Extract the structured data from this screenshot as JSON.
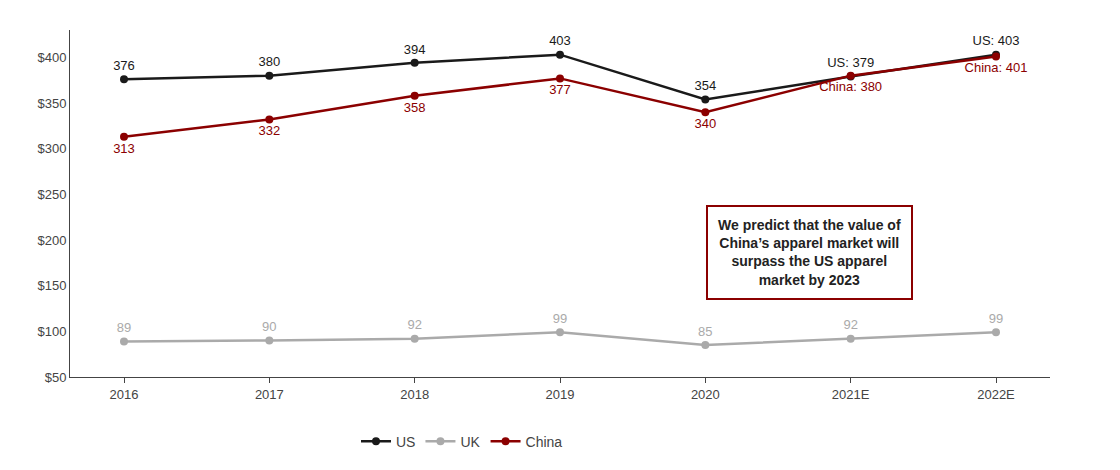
{
  "chart_data": {
    "type": "line",
    "categories": [
      "2016",
      "2017",
      "2018",
      "2019",
      "2020",
      "2021E",
      "2022E"
    ],
    "series": [
      {
        "name": "US",
        "color": "#1a1a1a",
        "values": [
          376,
          380,
          394,
          403,
          354,
          379,
          403
        ],
        "value_labels": [
          "376",
          "380",
          "394",
          "403",
          "354",
          "US: 379",
          "US: 403"
        ]
      },
      {
        "name": "UK",
        "color": "#aaaaaa",
        "values": [
          89,
          90,
          92,
          99,
          85,
          92,
          99
        ]
      },
      {
        "name": "China",
        "color": "#8b0000",
        "values": [
          313,
          332,
          358,
          377,
          340,
          380,
          401
        ],
        "value_labels": [
          "313",
          "332",
          "358",
          "377",
          "340",
          "China: 380",
          "China: 401"
        ]
      }
    ],
    "ylim": [
      50,
      430
    ],
    "yticks": [
      {
        "value": 50,
        "label": "$50"
      },
      {
        "value": 100,
        "label": "$100"
      },
      {
        "value": 150,
        "label": "$150"
      },
      {
        "value": 200,
        "label": "$200"
      },
      {
        "value": 250,
        "label": "$250"
      },
      {
        "value": 300,
        "label": "$300"
      },
      {
        "value": 350,
        "label": "$350"
      },
      {
        "value": 400,
        "label": "$400"
      }
    ],
    "annotations": [
      {
        "text": "We predict that the value of\nChina’s apparel market will\nsurpass the US apparel\nmarket by 2023",
        "color": "#8b0000"
      }
    ],
    "data_labels": true,
    "marker": "circle",
    "grid": false,
    "legend": "bottom"
  }
}
